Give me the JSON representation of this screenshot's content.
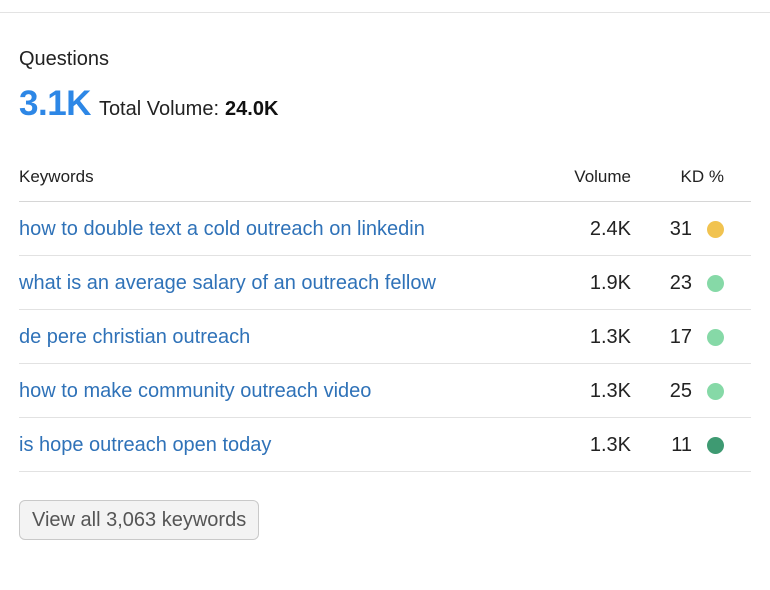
{
  "header": {
    "title": "Questions",
    "count": "3.1K",
    "total_volume_label": "Total Volume:",
    "total_volume_value": "24.0K"
  },
  "table": {
    "columns": {
      "keyword": "Keywords",
      "volume": "Volume",
      "kd": "KD %"
    },
    "rows": [
      {
        "keyword": "how to double text a cold outreach on linkedin",
        "volume": "2.4K",
        "kd": "31",
        "kd_color": "#f1c350"
      },
      {
        "keyword": "what is an average salary of an outreach fellow",
        "volume": "1.9K",
        "kd": "23",
        "kd_color": "#86d9a7"
      },
      {
        "keyword": "de pere christian outreach",
        "volume": "1.3K",
        "kd": "17",
        "kd_color": "#86d9a7"
      },
      {
        "keyword": "how to make community outreach video",
        "volume": "1.3K",
        "kd": "25",
        "kd_color": "#86d9a7"
      },
      {
        "keyword": "is hope outreach open today",
        "volume": "1.3K",
        "kd": "11",
        "kd_color": "#3e9a72"
      }
    ]
  },
  "footer": {
    "view_all_label": "View all 3,063 keywords"
  }
}
